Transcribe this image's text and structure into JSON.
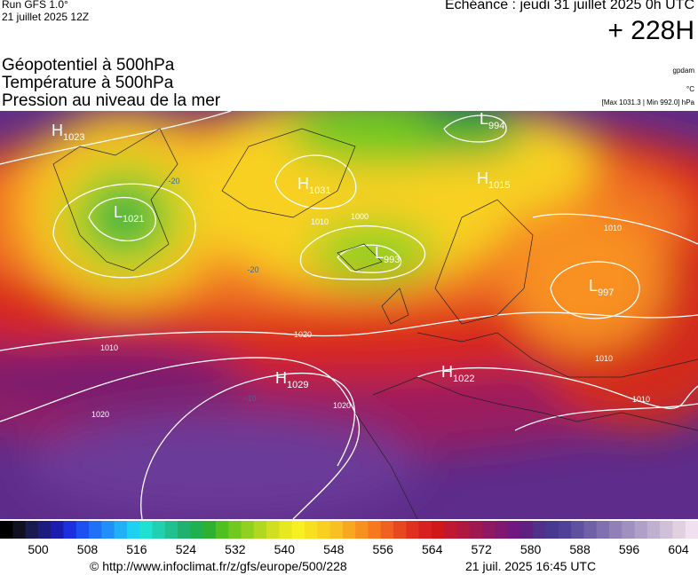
{
  "header": {
    "run": "Run GFS 1.0°",
    "date": "21 juillet 2025 12Z",
    "echeance": "Echéance : jeudi 31 juillet 2025 0h UTC",
    "lead": "+ 228H"
  },
  "layers": [
    "Géopotentiel à 500hPa",
    "Température à 500hPa",
    "Pression au niveau de la mer"
  ],
  "units": [
    "gpdam",
    "°C",
    "[Max 1031.3 | Min 992.0] hPa"
  ],
  "centers": [
    {
      "type": "H",
      "value": 1023
    },
    {
      "type": "L",
      "value": 1021
    },
    {
      "type": "H",
      "value": 1031
    },
    {
      "type": "L",
      "value": 993
    },
    {
      "type": "H",
      "value": 1015
    },
    {
      "type": "L",
      "value": 997
    },
    {
      "type": "H",
      "value": 1029
    },
    {
      "type": "H",
      "value": 1022
    },
    {
      "type": "L",
      "value": 994
    }
  ],
  "isobar_labels": [
    1010,
    1020,
    1020,
    1020,
    1010,
    1000,
    1010,
    1010,
    1010
  ],
  "temperature_labels": [
    -20,
    -20,
    -10
  ],
  "colorbar": {
    "ticks": [
      500,
      508,
      516,
      524,
      532,
      540,
      548,
      556,
      564,
      572,
      580,
      588,
      596,
      604
    ],
    "colors": [
      "#000000",
      "#101020",
      "#1a1a50",
      "#1c1c80",
      "#1c1cb0",
      "#1c30e0",
      "#1c50f0",
      "#2070f8",
      "#2090f8",
      "#20b0f8",
      "#20d0f0",
      "#20e0d0",
      "#20d0b0",
      "#20c090",
      "#20b070",
      "#20b050",
      "#30b030",
      "#50c020",
      "#70c820",
      "#90d020",
      "#b0d820",
      "#d0e020",
      "#e8e820",
      "#f8f020",
      "#f8e020",
      "#f8d020",
      "#f8c020",
      "#f8a820",
      "#f89020",
      "#f87820",
      "#f06020",
      "#e84820",
      "#e03020",
      "#d82020",
      "#d01818",
      "#c01830",
      "#b01840",
      "#a01850",
      "#901860",
      "#801870",
      "#701880",
      "#602080",
      "#503088",
      "#483890",
      "#504098",
      "#6050a0",
      "#7060a8",
      "#8070b0",
      "#9080b8",
      "#a090c0",
      "#b0a0c8",
      "#c0b0d0",
      "#d0c0d8",
      "#e0d0e0",
      "#f0e0f0"
    ]
  },
  "footer": {
    "source": "© http://www.infoclimat.fr/z/gfs/europe/500/228",
    "time": "21 juil. 2025 16:45 UTC"
  }
}
